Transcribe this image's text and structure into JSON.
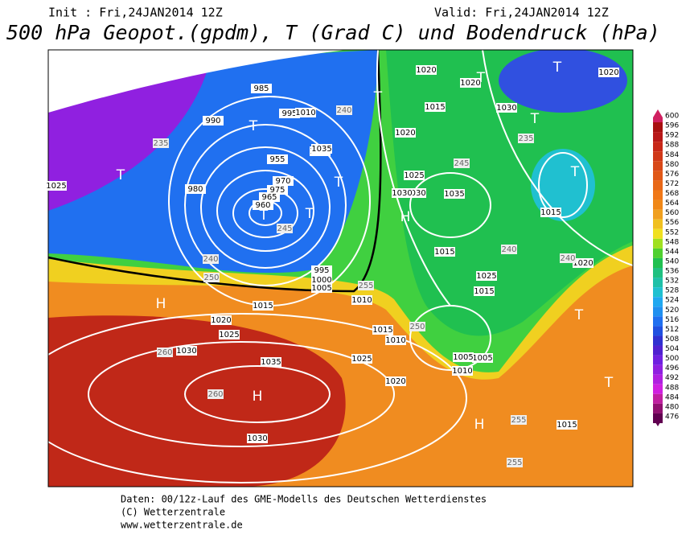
{
  "header": {
    "init": "Init : Fri,24JAN2014 12Z",
    "valid": "Valid: Fri,24JAN2014 12Z",
    "title": "500 hPa Geopot.(gpdm), T (Grad C) und Bodendruck (hPa)"
  },
  "colorbar": {
    "values": [
      600,
      596,
      592,
      588,
      584,
      580,
      576,
      572,
      568,
      564,
      560,
      556,
      552,
      548,
      544,
      540,
      536,
      532,
      528,
      524,
      520,
      516,
      512,
      508,
      504,
      500,
      496,
      492,
      488,
      484,
      480,
      476
    ],
    "colors": [
      "#d02060",
      "#a81010",
      "#b81818",
      "#c82818",
      "#d03818",
      "#d84818",
      "#e05818",
      "#e86818",
      "#f07818",
      "#f08818",
      "#f0a020",
      "#f0c020",
      "#f0e020",
      "#a0e020",
      "#50d030",
      "#20c050",
      "#20c080",
      "#20c0a8",
      "#20c0d0",
      "#20a8f0",
      "#2090f0",
      "#2070f0",
      "#2050e0",
      "#3030d0",
      "#5020d0",
      "#7020e0",
      "#9020e0",
      "#b020e0",
      "#d020e0",
      "#c020a0",
      "#901070",
      "#600050"
    ]
  },
  "pressure_labels": [
    1025,
    1020,
    1015,
    1030,
    1020,
    1025,
    1015,
    1020,
    1035,
    1030,
    1015,
    1020,
    1010,
    1005,
    1000,
    995,
    990,
    985,
    980,
    975,
    970,
    965,
    960,
    955,
    995,
    1000,
    1005,
    1010,
    1015,
    1020,
    1025,
    1030,
    1035,
    1030,
    1035,
    1030,
    1025,
    1020,
    1015,
    1010,
    1005,
    1010,
    1015,
    1020,
    1025,
    1015
  ],
  "geopotential_labels": [
    235,
    240,
    245,
    250,
    255,
    260,
    260,
    240,
    240,
    245,
    250,
    255,
    255,
    240,
    235
  ],
  "pressure_centers": [
    "H",
    "H",
    "H",
    "H",
    "T",
    "T",
    "T",
    "T",
    "T",
    "T",
    "T",
    "T",
    "T",
    "T",
    "T",
    "T"
  ],
  "footer": {
    "line1": "Daten: 00/12z-Lauf des GME-Modells des Deutschen Wetterdienstes",
    "line2": "(C) Wetterzentrale",
    "line3": "www.wetterzentrale.de"
  }
}
